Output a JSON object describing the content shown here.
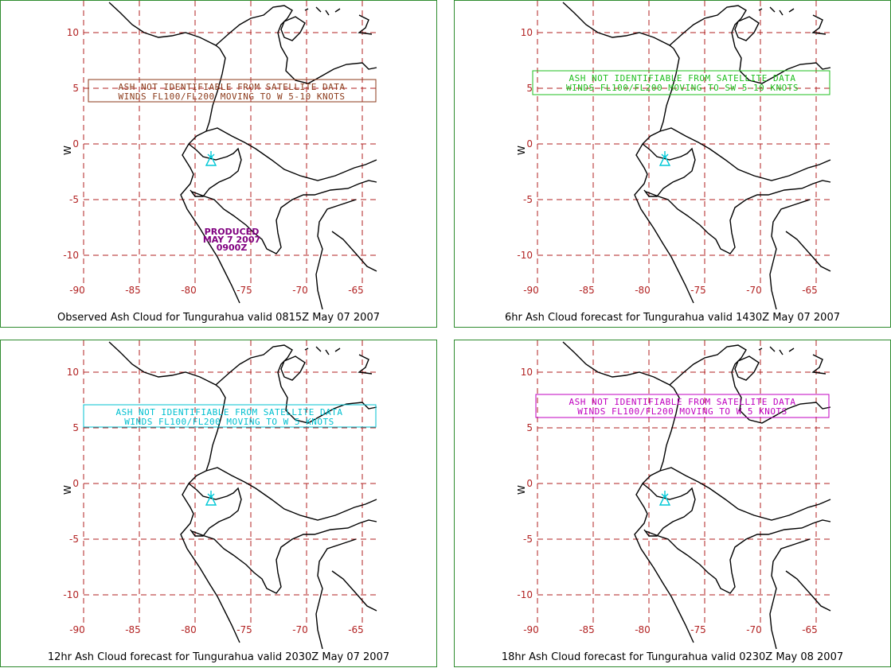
{
  "lon_ticks": [
    "-90",
    "-85",
    "-80",
    "-75",
    "-70",
    "-65"
  ],
  "lat_ticks": [
    "10",
    "5",
    "0",
    "-5",
    "-10"
  ],
  "grid_color": "#b22222",
  "border_color": "#2e8b2e",
  "volcano_color": "#00c8d7",
  "panels": [
    {
      "caption": "Observed Ash Cloud for Tungurahua valid 0815Z May 07 2007",
      "message_line1": "ASH NOT IDENTIFIABLE FROM SATELLITE DATA",
      "message_line2": "WINDS FL100/FL200 MOVING TO W 5-10 KNOTS",
      "message_color": "#8b3a1a",
      "produced": [
        "PRODUCED",
        "MAY 7 2007",
        "0900Z"
      ]
    },
    {
      "caption": "6hr Ash Cloud forecast for Tungurahua valid 1430Z May 07 2007",
      "message_line1": "ASH NOT IDENTIFIABLE FROM SATELLITE DATA",
      "message_line2": "WINDS FL100/FL200 MOVING TO SW 5-10 KNOTS",
      "message_color": "#1fbf1f"
    },
    {
      "caption": "12hr Ash Cloud forecast for Tungurahua valid 2030Z May 07 2007",
      "message_line1": "ASH NOT IDENTIFIABLE FROM SATELLITE DATA",
      "message_line2": "WINDS FL100/FL200 MOVING TO W 5 KNOTS",
      "message_color": "#00c0d0"
    },
    {
      "caption": "18hr Ash Cloud forecast for Tungurahua valid 0230Z May 08 2007",
      "message_line1": "ASH NOT IDENTIFIABLE FROM SATELLITE DATA",
      "message_line2": "WINDS FL100/FL200 MOVING TO W 5 KNOTS",
      "message_color": "#c000c0"
    }
  ]
}
